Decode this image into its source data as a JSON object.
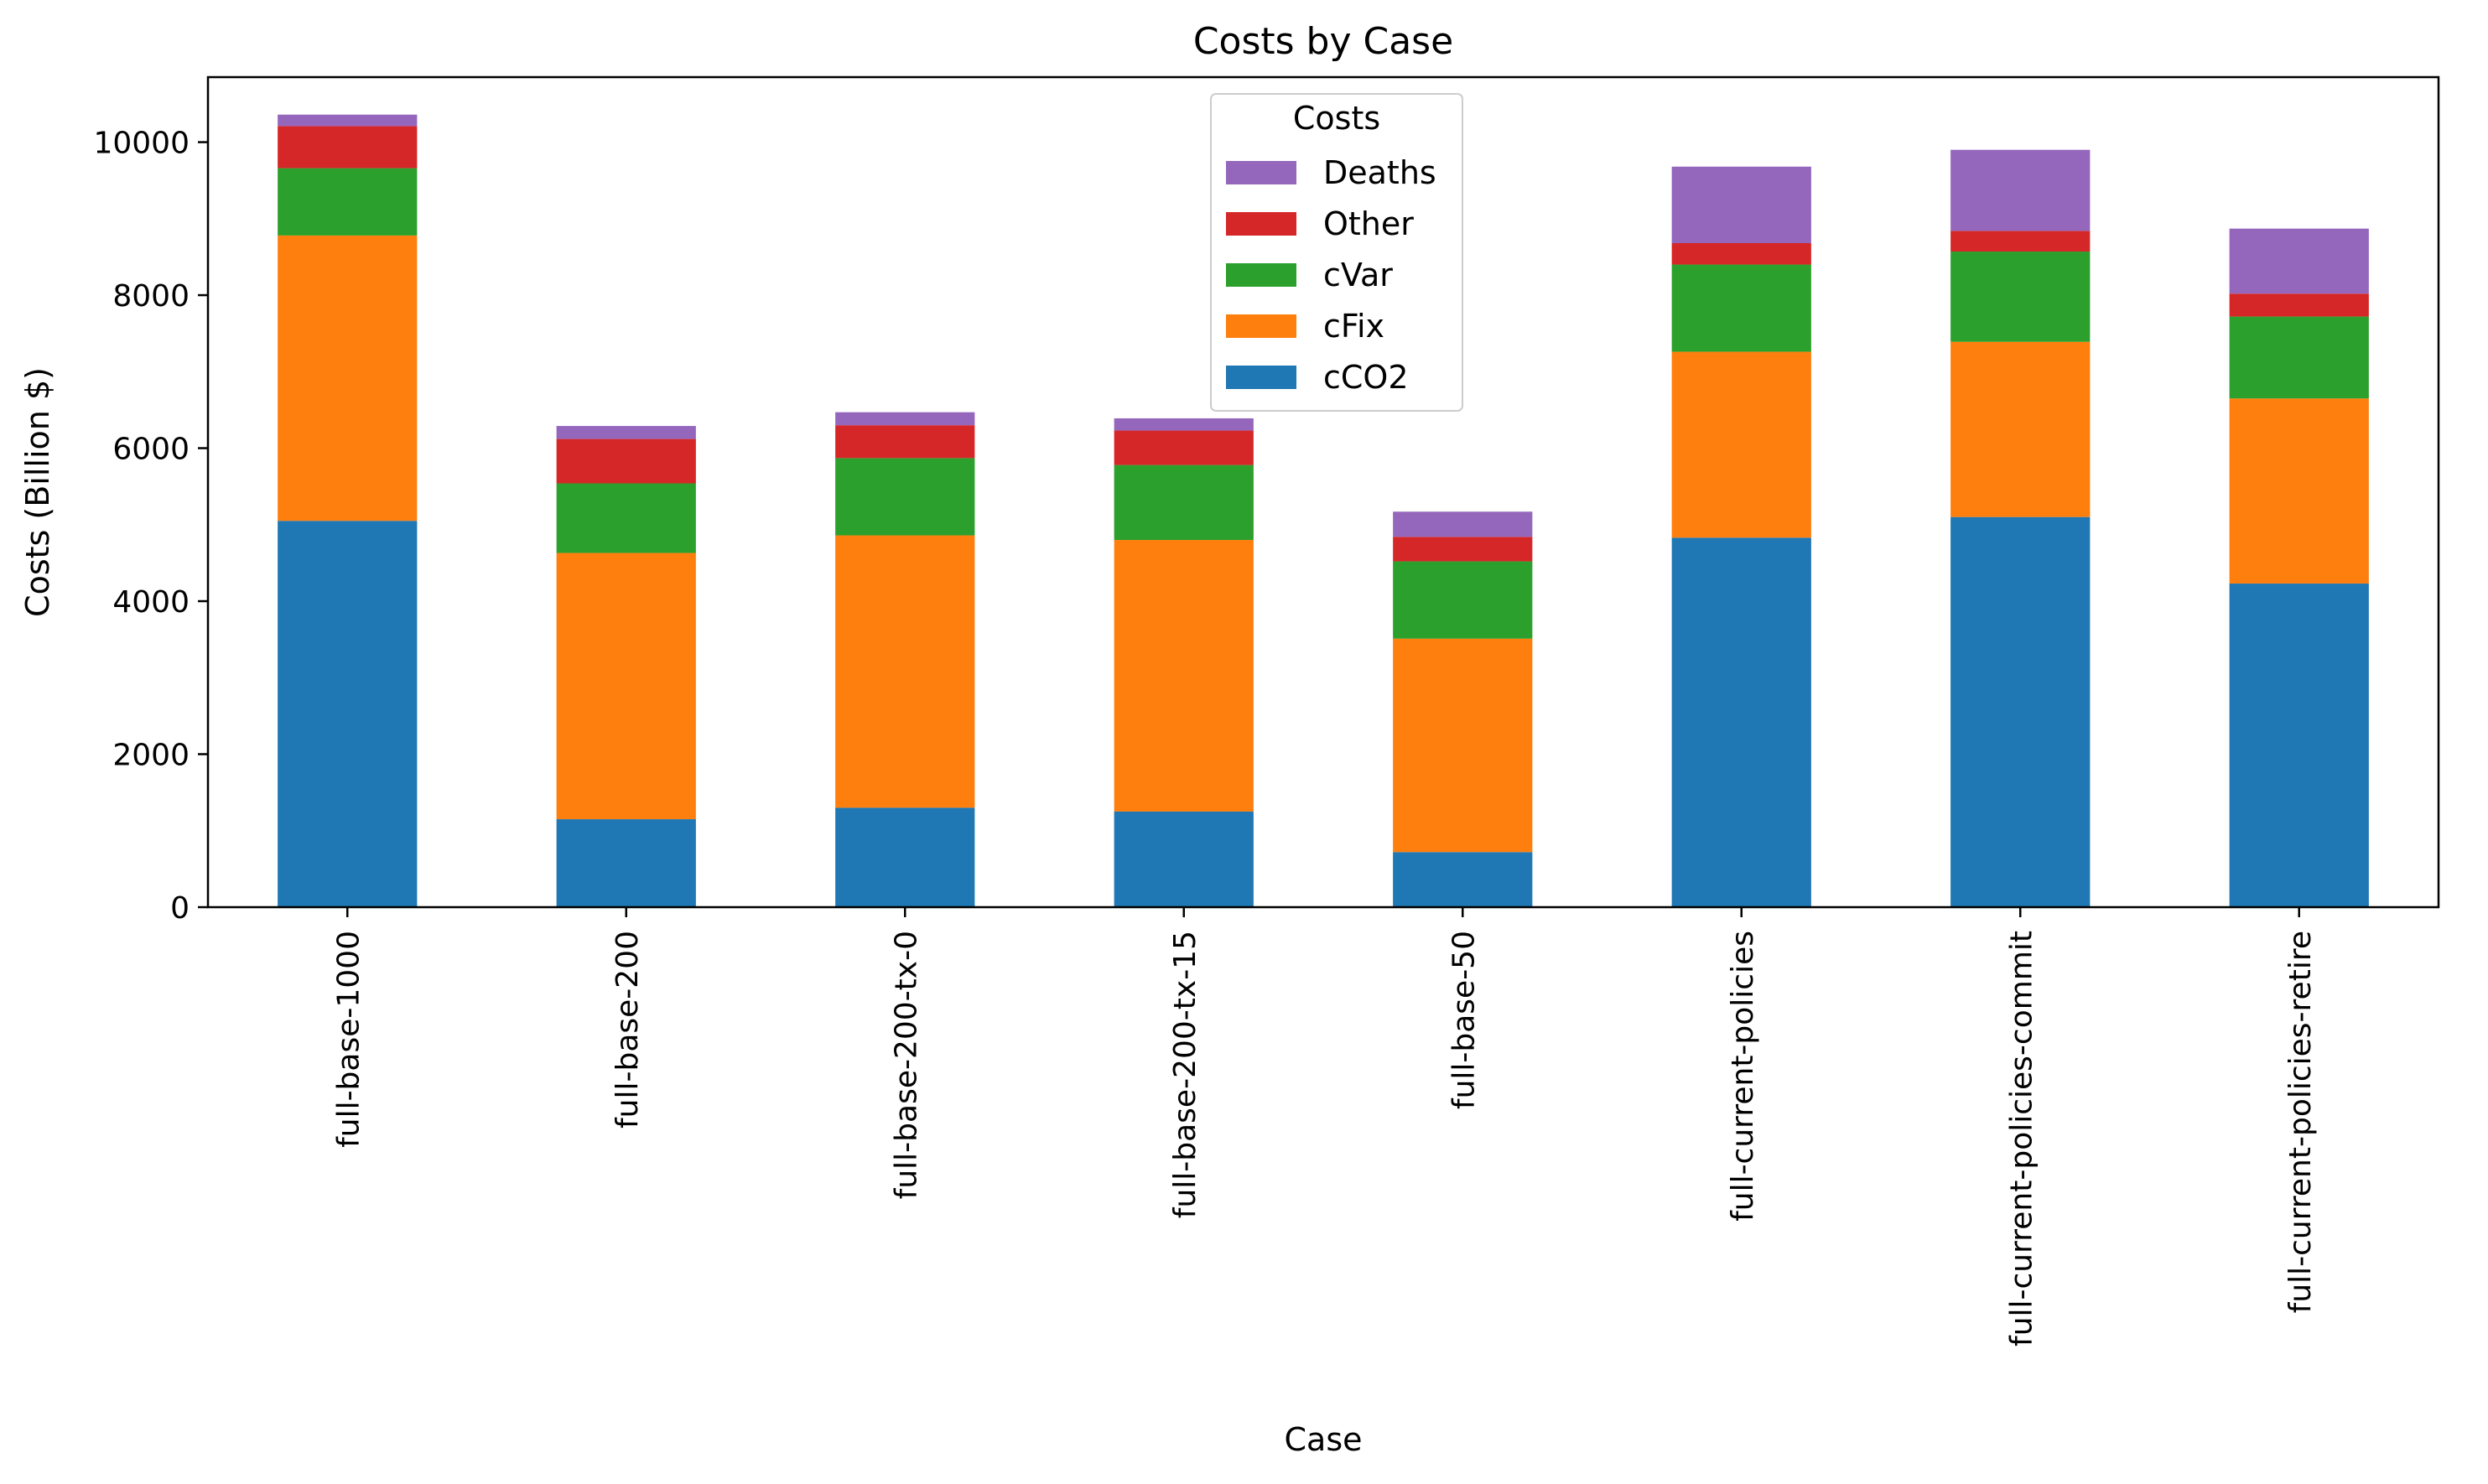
{
  "chart_data": {
    "type": "bar",
    "stacked": true,
    "title": "Costs by Case",
    "xlabel": "Case",
    "ylabel": "Costs (Billion $)",
    "ylim": [
      0,
      10850
    ],
    "yticks": [
      0,
      2000,
      4000,
      6000,
      8000,
      10000
    ],
    "grid": false,
    "legend": {
      "title": "Costs",
      "placement": "top-center",
      "order": [
        "Deaths",
        "Other",
        "cVar",
        "cFix",
        "cCO2"
      ]
    },
    "categories": [
      "full-base-1000",
      "full-base-200",
      "full-base-200-tx-0",
      "full-base-200-tx-15",
      "full-base-50",
      "full-current-policies",
      "full-current-policies-commit",
      "full-current-policies-retire"
    ],
    "series": [
      {
        "name": "cCO2",
        "color": "#1f77b4",
        "values": [
          5050,
          1150,
          1300,
          1250,
          720,
          4830,
          5100,
          4230
        ]
      },
      {
        "name": "cFix",
        "color": "#ff7f0e",
        "values": [
          3730,
          3480,
          3560,
          3550,
          2790,
          2430,
          2290,
          2420
        ]
      },
      {
        "name": "cVar",
        "color": "#2ca02c",
        "values": [
          880,
          910,
          1010,
          980,
          1010,
          1140,
          1180,
          1070
        ]
      },
      {
        "name": "Other",
        "color": "#d62728",
        "values": [
          550,
          580,
          430,
          450,
          320,
          280,
          270,
          300
        ]
      },
      {
        "name": "Deaths",
        "color": "#9467bd",
        "values": [
          150,
          170,
          170,
          160,
          330,
          1000,
          1060,
          850
        ]
      }
    ]
  }
}
